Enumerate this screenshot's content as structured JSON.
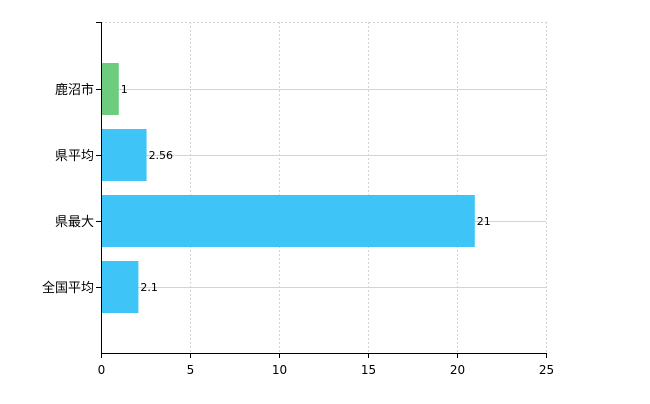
{
  "chart_data": {
    "type": "bar",
    "orientation": "horizontal",
    "categories": [
      "鹿沼市",
      "県平均",
      "県最大",
      "全国平均"
    ],
    "values": [
      1,
      2.56,
      21,
      2.1
    ],
    "data_labels": [
      "1",
      "2.56",
      "21",
      "2.1"
    ],
    "bar_colors": [
      "#6dcc7e",
      "#3ec4f7",
      "#3ec4f7",
      "#3ec4f7"
    ],
    "xlim": [
      0,
      25
    ],
    "x_ticks": [
      0,
      5,
      10,
      15,
      20,
      25
    ],
    "x_tick_labels": [
      "0",
      "5",
      "10",
      "15",
      "20",
      "25"
    ],
    "title": "",
    "xlabel": "",
    "ylabel": "",
    "grid": true,
    "legend": "none"
  }
}
